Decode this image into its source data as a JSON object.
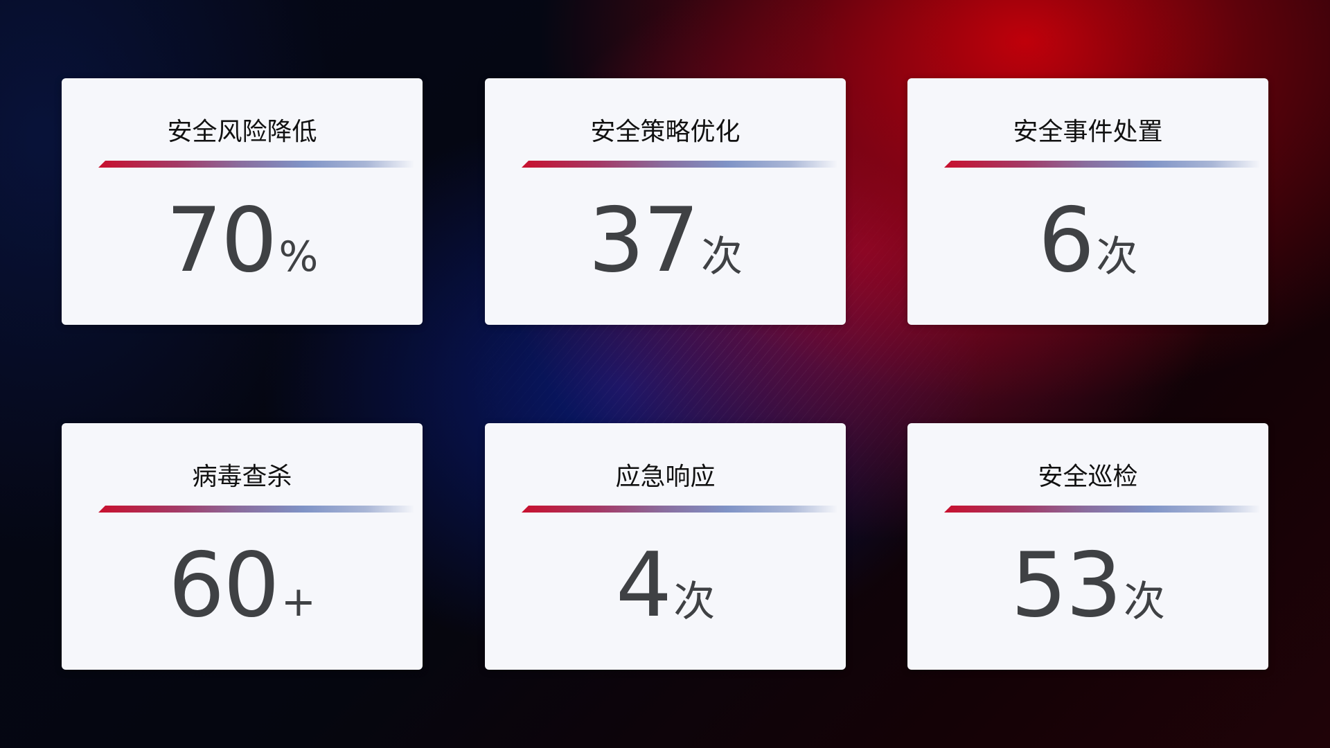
{
  "cards": [
    {
      "title": "安全风险降低",
      "value": "70",
      "unit": "%"
    },
    {
      "title": "安全策略优化",
      "value": "37",
      "unit": "次"
    },
    {
      "title": "安全事件处置",
      "value": "6",
      "unit": "次"
    },
    {
      "title": "病毒查杀",
      "value": "60",
      "unit": "+"
    },
    {
      "title": "应急响应",
      "value": "4",
      "unit": "次"
    },
    {
      "title": "安全巡检",
      "value": "53",
      "unit": "次"
    }
  ],
  "colors": {
    "accent_red": "#c8102e",
    "accent_blue": "#7f93c6",
    "card_bg": "#f6f7fb",
    "value_text": "#3f4144"
  }
}
